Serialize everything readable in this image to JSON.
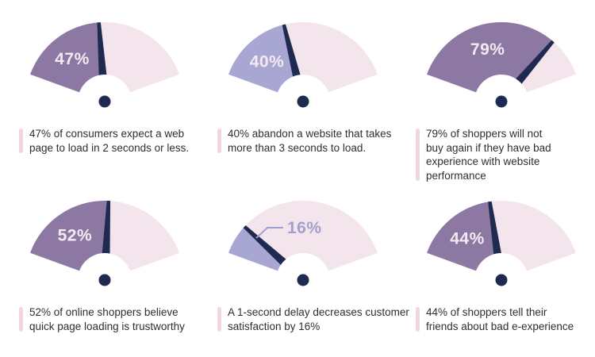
{
  "page": {
    "background": "#ffffff",
    "description": "Website performance statistics gauge infographic"
  },
  "theme": {
    "purple": "#8d77a3",
    "periwinkle": "#a8a6d2",
    "track_pink": "#f4e5ec",
    "navy": "#1f2a50",
    "inside_label_color": "#f4eaf1",
    "outside_label_color": "#a29fce",
    "caption_text_color": "#2e2d35",
    "caption_bar_color": "#f1d6e0"
  },
  "chart_data": [
    {
      "type": "gauge",
      "value": 47,
      "label": "47%",
      "fill": "purple",
      "label_position": "inside",
      "caption": "47% of consumers expect a web\npage to load in 2 seconds or less."
    },
    {
      "type": "gauge",
      "value": 40,
      "label": "40%",
      "fill": "periwinkle",
      "label_position": "inside",
      "caption": "40% abandon a website that takes\nmore than 3 seconds to load."
    },
    {
      "type": "gauge",
      "value": 79,
      "label": "79%",
      "fill": "purple",
      "label_position": "inside",
      "caption": "79% of shoppers will not\nbuy again if they have bad\nexperience with website\nperformance"
    },
    {
      "type": "gauge",
      "value": 52,
      "label": "52%",
      "fill": "purple",
      "label_position": "inside",
      "caption": "52% of online shoppers believe\nquick page loading is trustworthy"
    },
    {
      "type": "gauge",
      "value": 16,
      "label": "16%",
      "fill": "periwinkle",
      "label_position": "outside-callout",
      "caption": "A 1-second delay decreases customer\nsatisfaction by 16%"
    },
    {
      "type": "gauge",
      "value": 44,
      "label": "44%",
      "fill": "purple",
      "label_position": "inside",
      "caption": "44% of shoppers tell their\nfriends about bad e-experience"
    }
  ]
}
